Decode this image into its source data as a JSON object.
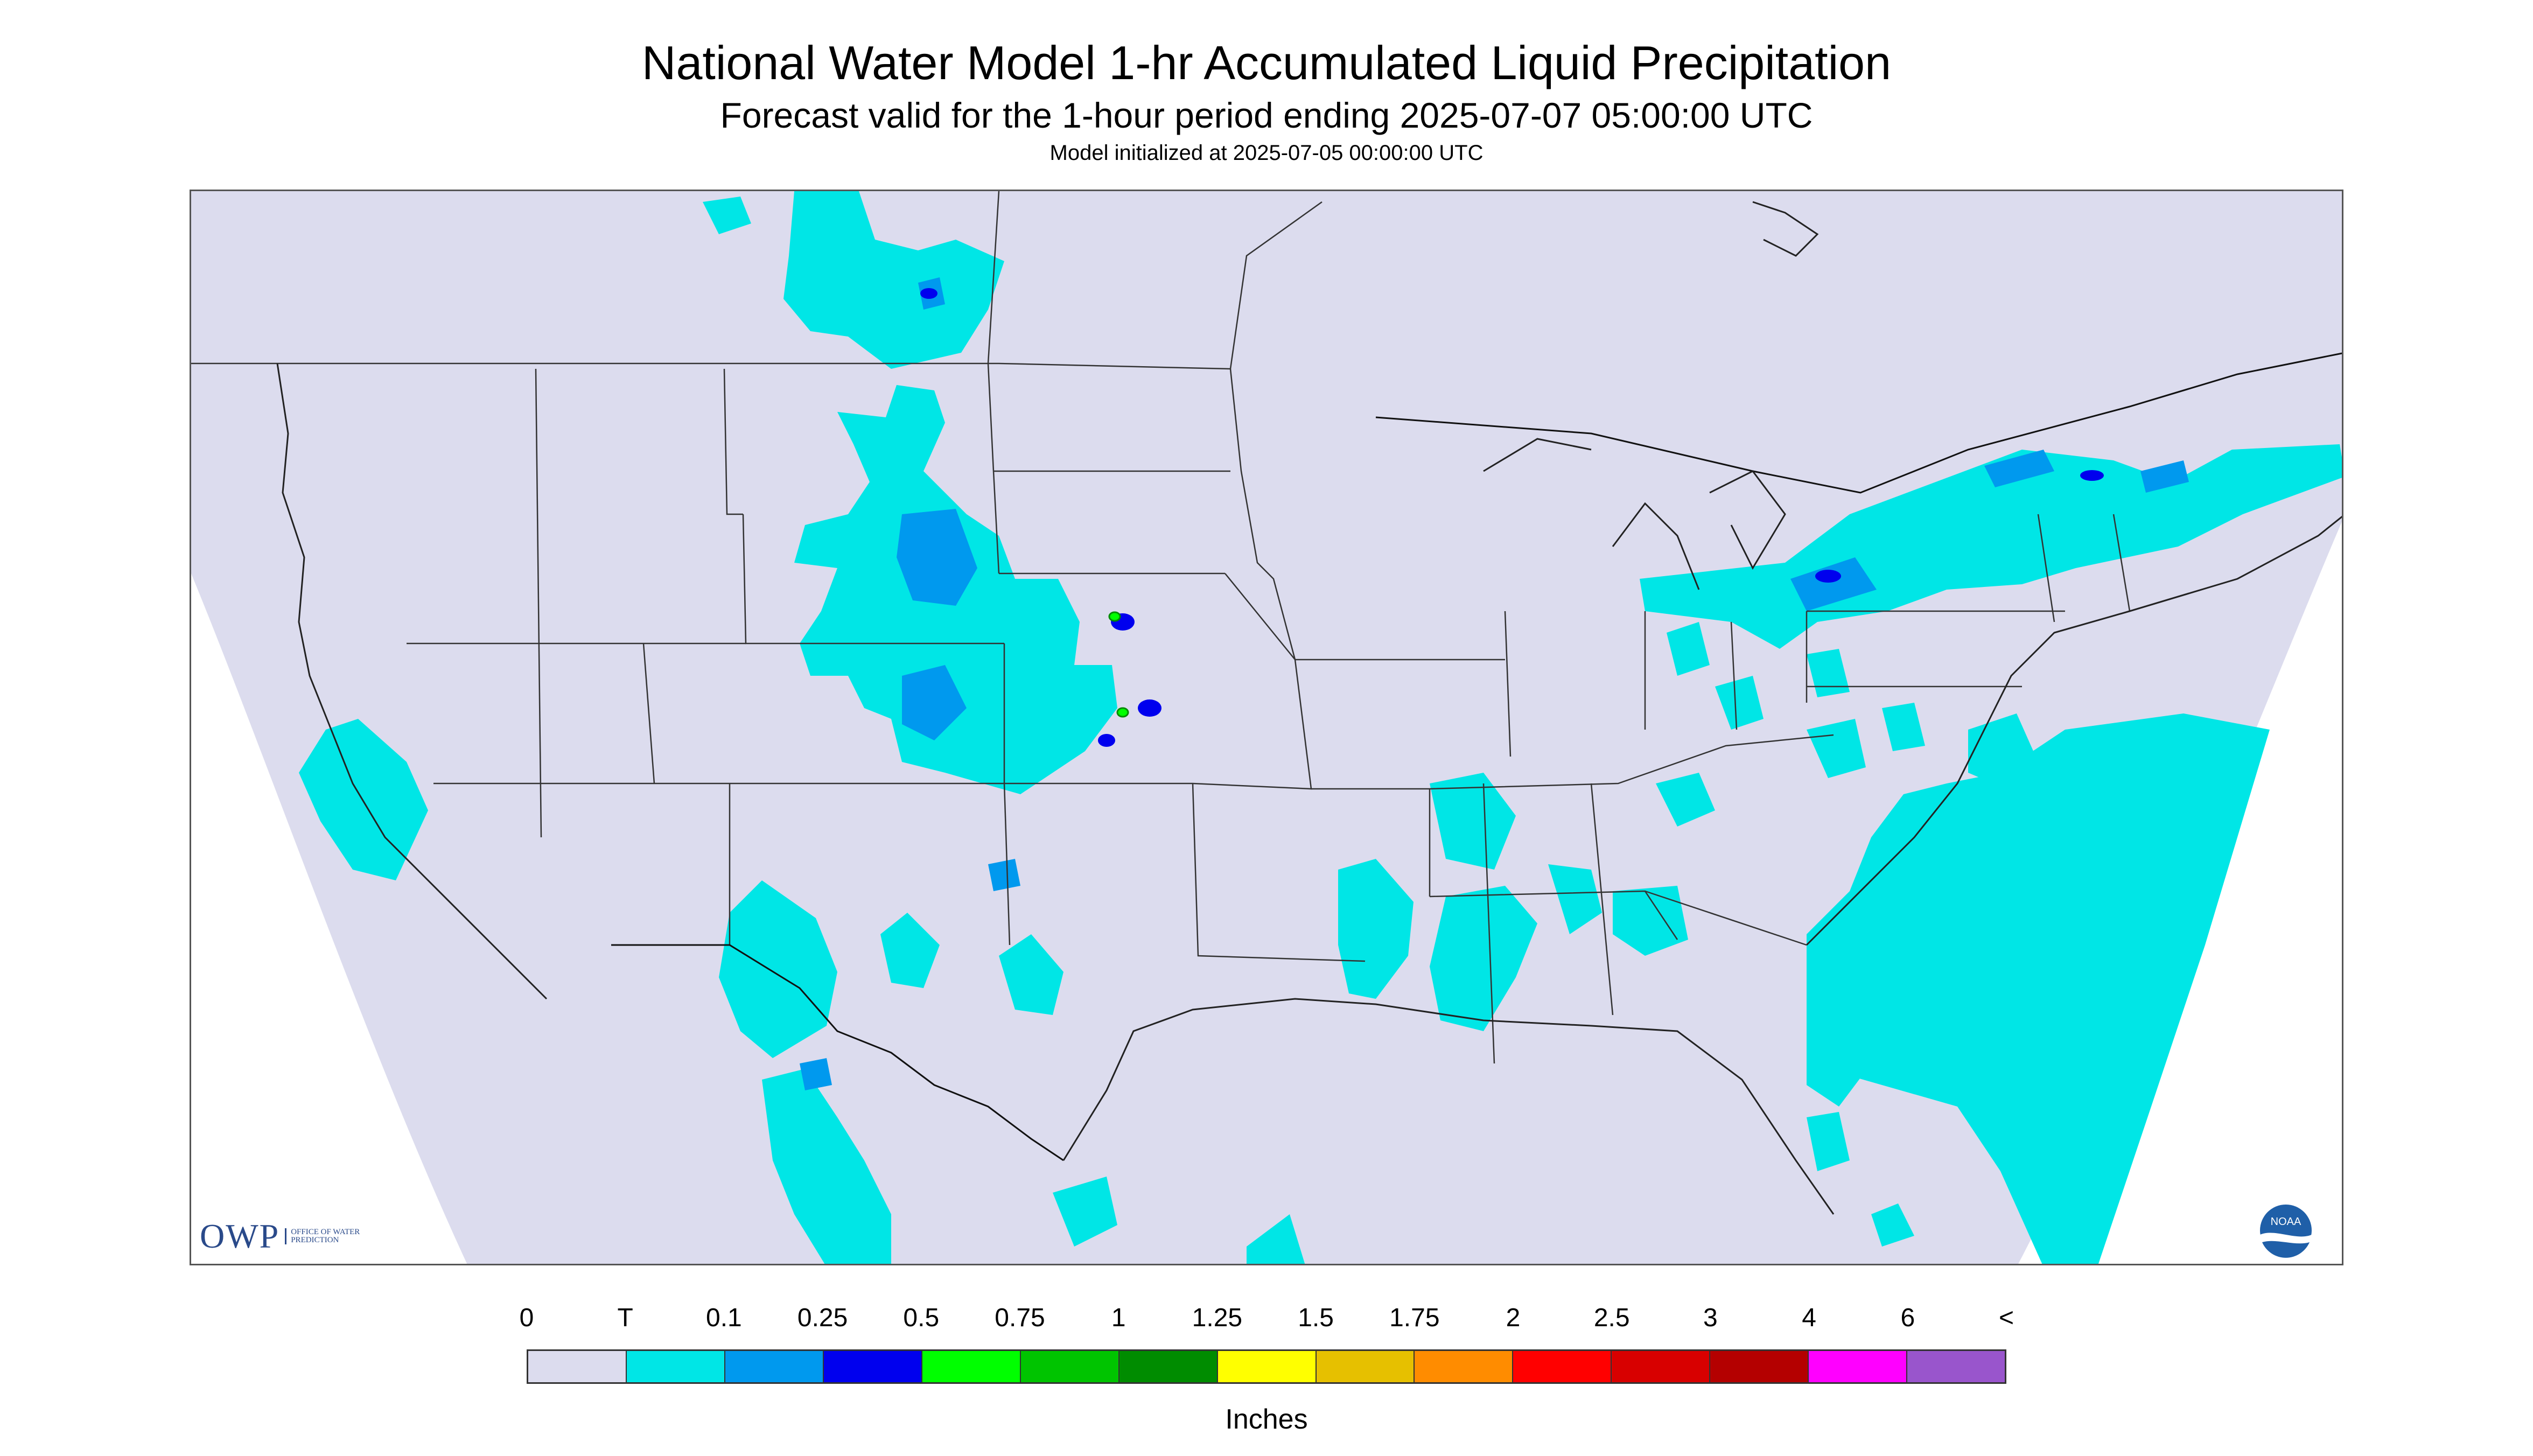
{
  "titles": {
    "main": "National Water Model 1-hr Accumulated Liquid Precipitation",
    "valid": "Forecast valid for the 1-hour period ending 2025-07-07 05:00:00 UTC",
    "init": "Model initialized at 2025-07-05 00:00:00 UTC"
  },
  "logos": {
    "owp_text": "OWP",
    "owp_subtext": "Office of Water Prediction",
    "noaa_text": "NOAA"
  },
  "legend": {
    "units": "Inches",
    "tick_labels": [
      "0",
      "T",
      "0.1",
      "0.25",
      "0.5",
      "0.75",
      "1",
      "1.25",
      "1.5",
      "1.75",
      "2",
      "2.5",
      "3",
      "4",
      "6",
      "<"
    ],
    "colors": [
      "#dcdcee",
      "#00e6e6",
      "#0099ee",
      "#0000ee",
      "#00ff00",
      "#00c400",
      "#008c00",
      "#ffff00",
      "#e6c000",
      "#ff8c00",
      "#ff0000",
      "#d80000",
      "#b40000",
      "#ff00ff",
      "#9955cc"
    ]
  },
  "map": {
    "background_color": "#dcdcee",
    "outside_domain_color": "#ffffff",
    "boundary_color": "#333333"
  }
}
